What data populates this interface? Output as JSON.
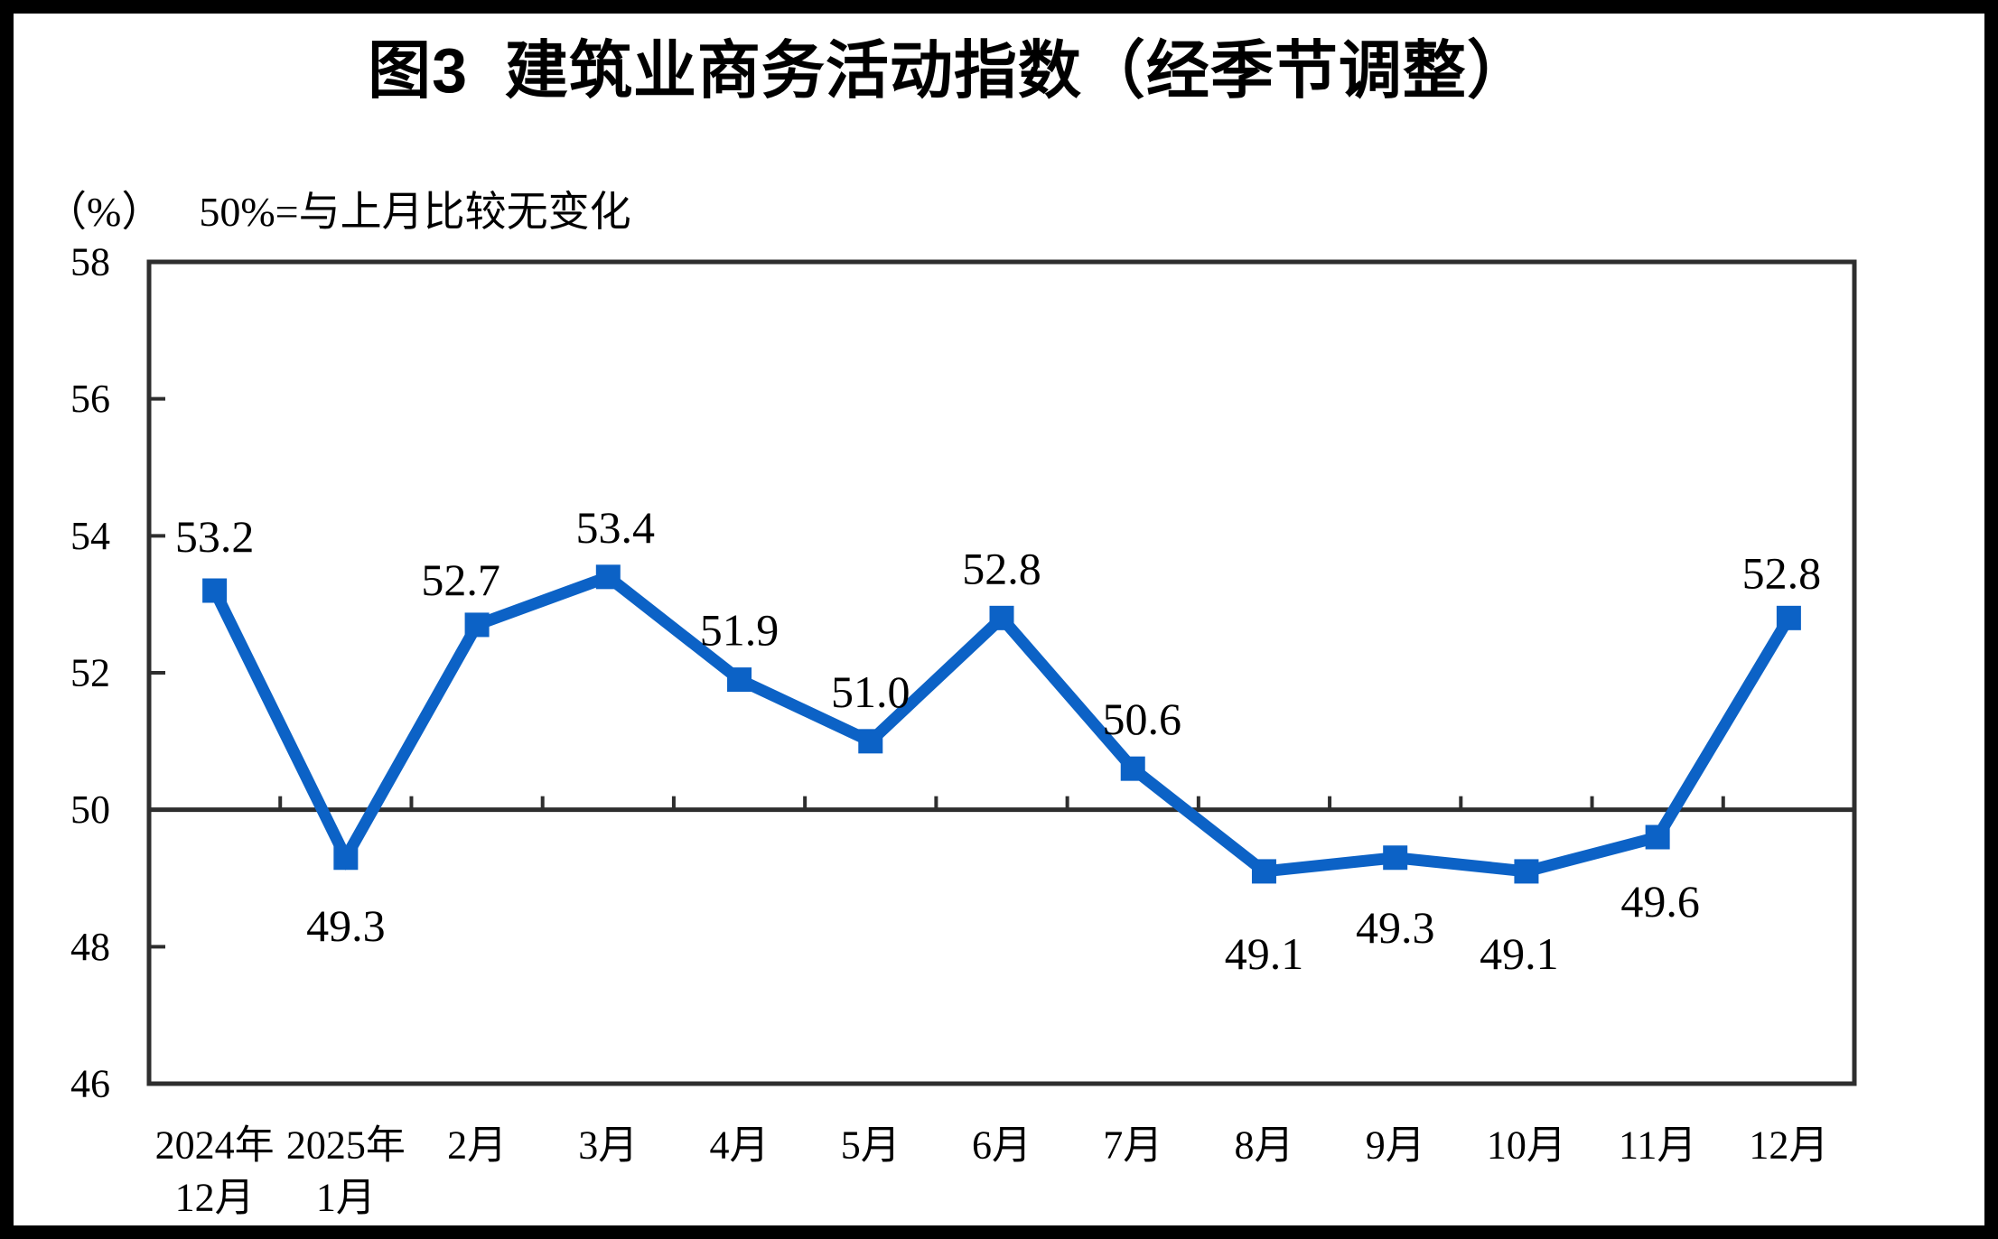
{
  "page": {
    "background": "#ffffff",
    "frame_color": "#000000"
  },
  "chart_data": {
    "type": "line",
    "title": "图3  建筑业商务活动指数（经季节调整）",
    "unit_label": "（%）",
    "note": "50%=与上月比较无变化",
    "categories": [
      [
        "2024年",
        "12月"
      ],
      [
        "2025年",
        "1月"
      ],
      [
        "2月"
      ],
      [
        "3月"
      ],
      [
        "4月"
      ],
      [
        "5月"
      ],
      [
        "6月"
      ],
      [
        "7月"
      ],
      [
        "8月"
      ],
      [
        "9月"
      ],
      [
        "10月"
      ],
      [
        "11月"
      ],
      [
        "12月"
      ]
    ],
    "values": [
      53.2,
      49.3,
      52.7,
      53.4,
      51.9,
      51.0,
      52.8,
      50.6,
      49.1,
      49.3,
      49.1,
      49.6,
      52.8
    ],
    "value_labels": [
      "53.2",
      "49.3",
      "52.7",
      "53.4",
      "51.9",
      "51.0",
      "52.8",
      "50.6",
      "49.1",
      "49.3",
      "49.1",
      "49.6",
      "52.8"
    ],
    "ylim": [
      46,
      58
    ],
    "yticks": [
      58,
      56,
      54,
      52,
      50,
      48,
      46
    ],
    "reference_line": 50,
    "grid": false,
    "legend": "none",
    "marker": "square",
    "line_color": "#0c62c6",
    "axis_color": "#2e2e2e",
    "text_color": "#000000",
    "label_dx": [
      0,
      0,
      -18,
      8,
      0,
      0,
      0,
      10,
      0,
      0,
      -8,
      3,
      -8
    ],
    "label_dy": [
      -60,
      75,
      -50,
      -55,
      -55,
      -55,
      -55,
      -55,
      91,
      77,
      91,
      71,
      -50
    ]
  }
}
